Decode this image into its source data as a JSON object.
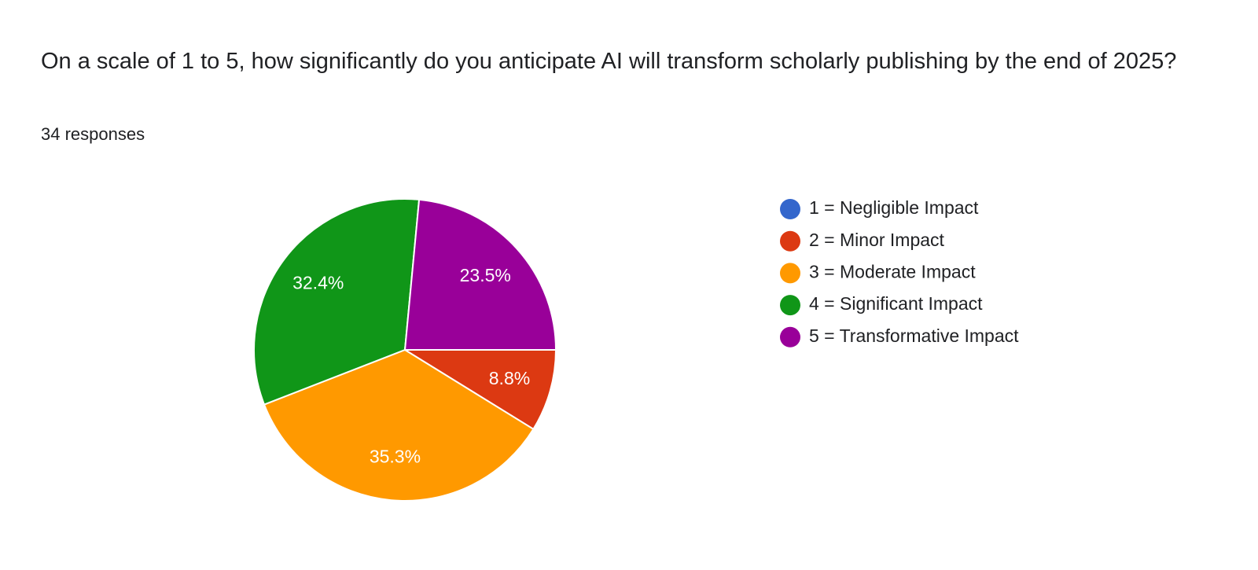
{
  "chart_data": {
    "type": "pie",
    "title": "On a scale of 1 to 5, how significantly do you anticipate AI will transform scholarly publishing by the end of 2025?",
    "subtitle": "34 responses",
    "categories": [
      "1 = Negligible Impact",
      "2 = Minor Impact",
      "3 = Moderate Impact",
      "4 = Significant Impact",
      "5 = Transformative Impact"
    ],
    "values": [
      0,
      8.8,
      35.3,
      32.4,
      23.5
    ],
    "value_labels": [
      null,
      "8.8%",
      "35.3%",
      "32.4%",
      "23.5%"
    ],
    "colors": [
      "#3366cc",
      "#dc3912",
      "#ff9900",
      "#109618",
      "#990099"
    ],
    "legend": "right"
  }
}
